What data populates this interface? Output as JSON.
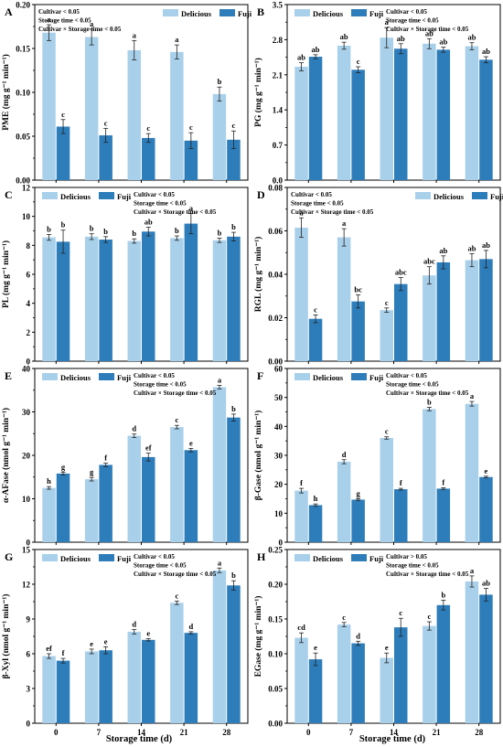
{
  "figure": {
    "x_axis_title": "Storage time (d)",
    "x_tick_labels": [
      "0",
      "7",
      "14",
      "21",
      "28"
    ]
  },
  "chart_data": [
    {
      "panel": "A",
      "type": "bar",
      "ylabel": "PME (mg g⁻¹ min⁻¹)",
      "ylim": [
        0,
        0.2
      ],
      "yticks": [
        "0.00",
        "0.05",
        "0.10",
        "0.15",
        "0.20"
      ],
      "categories": [
        "0",
        "7",
        "14",
        "21",
        "28"
      ],
      "legend": "top-right",
      "stats": [
        "Cultivar < 0.05",
        "Storage time < 0.05",
        "Cultivar × Storage time < 0.05"
      ],
      "series": [
        {
          "name": "Delicious",
          "values": [
            0.168,
            0.163,
            0.148,
            0.146,
            0.098
          ],
          "errors": [
            0.009,
            0.009,
            0.011,
            0.008,
            0.008
          ],
          "letters": [
            "a",
            "a",
            "a",
            "a",
            "b"
          ]
        },
        {
          "name": "Fuji",
          "values": [
            0.061,
            0.051,
            0.048,
            0.045,
            0.046
          ],
          "errors": [
            0.008,
            0.008,
            0.005,
            0.009,
            0.01
          ],
          "letters": [
            "c",
            "c",
            "c",
            "c",
            "c"
          ]
        }
      ]
    },
    {
      "panel": "B",
      "type": "bar",
      "ylabel": "PG (mg g⁻¹ min⁻¹)",
      "ylim": [
        0,
        3.5
      ],
      "yticks": [
        "0.0",
        "0.7",
        "1.4",
        "2.1",
        "2.8",
        "3.5"
      ],
      "categories": [
        "0",
        "7",
        "14",
        "21",
        "28"
      ],
      "legend": "top-left",
      "stats": [
        "Cultivar < 0.05",
        "Storage time < 0.05",
        "Cultivar × Storage time < 0.05"
      ],
      "series": [
        {
          "name": "Delicious",
          "values": [
            2.26,
            2.68,
            2.84,
            2.72,
            2.67
          ],
          "errors": [
            0.08,
            0.07,
            0.2,
            0.1,
            0.07
          ],
          "letters": [
            "ab",
            "ab",
            "a",
            "ab",
            "ab"
          ]
        },
        {
          "name": "Fuji",
          "values": [
            2.46,
            2.2,
            2.62,
            2.6,
            2.4
          ],
          "errors": [
            0.04,
            0.06,
            0.1,
            0.05,
            0.06
          ],
          "letters": [
            "ab",
            "c",
            "ab",
            "ab",
            "ab"
          ]
        }
      ]
    },
    {
      "panel": "C",
      "type": "bar",
      "ylabel": "PL (mg g⁻¹ min⁻¹)",
      "ylim": [
        0,
        12
      ],
      "yticks": [
        "0",
        "2",
        "4",
        "6",
        "8",
        "10",
        "12"
      ],
      "categories": [
        "0",
        "7",
        "14",
        "21",
        "28"
      ],
      "legend": "top-left",
      "stats": [
        "Cultivar < 0.05",
        "Storage time < 0.05",
        "Cultivar × Storage time < 0.05"
      ],
      "series": [
        {
          "name": "Delicious",
          "values": [
            8.55,
            8.6,
            8.3,
            8.5,
            8.35
          ],
          "errors": [
            0.2,
            0.2,
            0.15,
            0.15,
            0.15
          ],
          "letters": [
            "b",
            "b",
            "b",
            "b",
            "b"
          ]
        },
        {
          "name": "Fuji",
          "values": [
            8.25,
            8.4,
            8.95,
            9.5,
            8.6
          ],
          "errors": [
            0.8,
            0.2,
            0.3,
            0.7,
            0.3
          ],
          "letters": [
            "b",
            "b",
            "ab",
            "a",
            "b"
          ]
        }
      ]
    },
    {
      "panel": "D",
      "type": "bar",
      "ylabel": "RGL (mg g⁻¹ min⁻¹)",
      "ylim": [
        0,
        0.08
      ],
      "yticks": [
        "0.00",
        "0.02",
        "0.04",
        "0.06",
        "0.08"
      ],
      "categories": [
        "0",
        "7",
        "14",
        "21",
        "28"
      ],
      "legend": "top-right",
      "stats": [
        "Cultivar < 0.05",
        "Storage time < 0.05",
        "Cultivar × Storage time < 0.05"
      ],
      "series": [
        {
          "name": "Delicious",
          "values": [
            0.0615,
            0.057,
            0.0235,
            0.0395,
            0.0465
          ],
          "errors": [
            0.0045,
            0.004,
            0.001,
            0.004,
            0.003
          ],
          "letters": [
            "a",
            "a",
            "c",
            "abc",
            "ab"
          ]
        },
        {
          "name": "Fuji",
          "values": [
            0.0195,
            0.0275,
            0.0355,
            0.0455,
            0.047
          ],
          "errors": [
            0.0018,
            0.003,
            0.003,
            0.003,
            0.004
          ],
          "letters": [
            "c",
            "bc",
            "abc",
            "ab",
            "ab"
          ]
        }
      ]
    },
    {
      "panel": "E",
      "type": "bar",
      "ylabel": "α-AFase (nmol g⁻¹ min⁻¹)",
      "ylim": [
        0,
        40
      ],
      "yticks": [
        "0",
        "10",
        "20",
        "30",
        "40"
      ],
      "categories": [
        "0",
        "7",
        "14",
        "21",
        "28"
      ],
      "legend": "top-left",
      "stats": [
        "Cultivar < 0.05",
        "Storage time < 0.05",
        "Cultivar × Storage time < 0.05"
      ],
      "series": [
        {
          "name": "Delicious",
          "values": [
            12.5,
            14.5,
            24.5,
            26.5,
            35.7
          ],
          "errors": [
            0.3,
            0.4,
            0.4,
            0.4,
            0.4
          ],
          "letters": [
            "h",
            "g",
            "d",
            "c",
            "a"
          ]
        },
        {
          "name": "Fuji",
          "values": [
            15.8,
            17.8,
            19.6,
            21.2,
            28.7
          ],
          "errors": [
            0.3,
            0.4,
            0.9,
            0.4,
            0.8
          ],
          "letters": [
            "g",
            "f",
            "ef",
            "e",
            "b"
          ]
        }
      ]
    },
    {
      "panel": "F",
      "type": "bar",
      "ylabel": "β-Gase (nmol g⁻¹ min⁻¹)",
      "ylim": [
        0,
        60
      ],
      "yticks": [
        "0",
        "10",
        "20",
        "30",
        "40",
        "50",
        "60"
      ],
      "categories": [
        "0",
        "7",
        "14",
        "21",
        "28"
      ],
      "legend": "top-left",
      "stats": [
        "Cultivar < 0.05",
        "Storage time < 0.05",
        "Cultivar × Storage time < 0.05"
      ],
      "series": [
        {
          "name": "Delicious",
          "values": [
            17.8,
            27.8,
            36.0,
            46.0,
            47.8
          ],
          "errors": [
            0.8,
            0.7,
            0.4,
            0.6,
            0.8
          ],
          "letters": [
            "f",
            "d",
            "c",
            "b",
            "a"
          ]
        },
        {
          "name": "Fuji",
          "values": [
            12.8,
            14.7,
            18.3,
            18.5,
            22.5
          ],
          "errors": [
            0.4,
            0.3,
            0.3,
            0.3,
            0.3
          ],
          "letters": [
            "h",
            "g",
            "f",
            "f",
            "e"
          ]
        }
      ]
    },
    {
      "panel": "G",
      "type": "bar",
      "ylabel": "β-Xyl (nmol g⁻¹ min⁻¹)",
      "ylim": [
        0,
        15
      ],
      "yticks": [
        "0",
        "3",
        "6",
        "9",
        "12",
        "15"
      ],
      "categories": [
        "0",
        "7",
        "14",
        "21",
        "28"
      ],
      "legend": "top-left",
      "stats": [
        "Cultivar < 0.05",
        "Storage time < 0.05",
        "Cultivar × Storage time < 0.05"
      ],
      "series": [
        {
          "name": "Delicious",
          "values": [
            5.8,
            6.2,
            7.9,
            10.4,
            13.2
          ],
          "errors": [
            0.2,
            0.2,
            0.2,
            0.15,
            0.2
          ],
          "letters": [
            "ef",
            "e",
            "d",
            "c",
            "a"
          ]
        },
        {
          "name": "Fuji",
          "values": [
            5.4,
            6.3,
            7.2,
            7.8,
            11.9
          ],
          "errors": [
            0.2,
            0.3,
            0.1,
            0.1,
            0.4
          ],
          "letters": [
            "f",
            "e",
            "e",
            "d",
            "b"
          ]
        }
      ]
    },
    {
      "panel": "H",
      "type": "bar",
      "ylabel": "EGase (mg g⁻¹ min⁻¹)",
      "ylim": [
        0,
        0.25
      ],
      "yticks": [
        "0.00",
        "0.05",
        "0.10",
        "0.15",
        "0.20",
        "0.25"
      ],
      "categories": [
        "0",
        "7",
        "14",
        "21",
        "28"
      ],
      "legend": "top-left",
      "stats": [
        "Cultivar > 0.05",
        "Storage time < 0.05",
        "Cultivar × Storage time < 0.05"
      ],
      "series": [
        {
          "name": "Delicious",
          "values": [
            0.123,
            0.142,
            0.094,
            0.14,
            0.204
          ],
          "errors": [
            0.007,
            0.003,
            0.007,
            0.006,
            0.008
          ],
          "letters": [
            "cd",
            "c",
            "e",
            "c",
            "a"
          ]
        },
        {
          "name": "Fuji",
          "values": [
            0.092,
            0.115,
            0.138,
            0.17,
            0.185
          ],
          "errors": [
            0.009,
            0.003,
            0.013,
            0.007,
            0.009
          ],
          "letters": [
            "e",
            "d",
            "c",
            "b",
            "ab"
          ]
        }
      ]
    }
  ],
  "colors": {
    "delicious": "#a9d0ea",
    "fuji": "#2d7dba"
  }
}
